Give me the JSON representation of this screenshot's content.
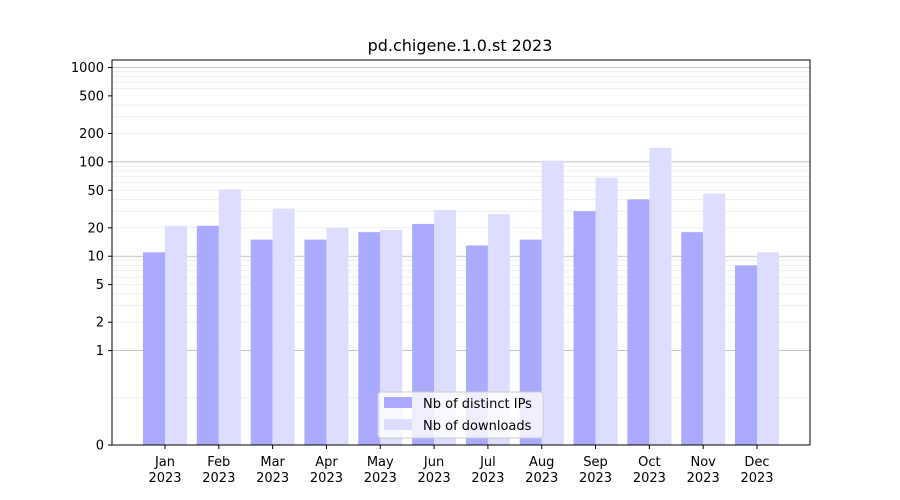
{
  "chart_data": {
    "type": "bar",
    "title": "pd.chigene.1.0.st 2023",
    "xlabel": "",
    "ylabel": "",
    "y_scale": "symlog",
    "y_ticks": [
      0,
      1,
      2,
      5,
      10,
      20,
      50,
      100,
      200,
      500,
      1000
    ],
    "y_tick_labels": [
      "0",
      "1",
      "2",
      "5",
      "10",
      "20",
      "50",
      "100",
      "200",
      "500",
      "1000"
    ],
    "ylim": [
      0,
      1200
    ],
    "grid": true,
    "legend_position": "bottom-center",
    "categories": [
      {
        "month": "Jan",
        "year": "2023"
      },
      {
        "month": "Feb",
        "year": "2023"
      },
      {
        "month": "Mar",
        "year": "2023"
      },
      {
        "month": "Apr",
        "year": "2023"
      },
      {
        "month": "May",
        "year": "2023"
      },
      {
        "month": "Jun",
        "year": "2023"
      },
      {
        "month": "Jul",
        "year": "2023"
      },
      {
        "month": "Aug",
        "year": "2023"
      },
      {
        "month": "Sep",
        "year": "2023"
      },
      {
        "month": "Oct",
        "year": "2023"
      },
      {
        "month": "Nov",
        "year": "2023"
      },
      {
        "month": "Dec",
        "year": "2023"
      }
    ],
    "series": [
      {
        "name": "Nb of distinct IPs",
        "color": "#aaaaff",
        "values": [
          11,
          21,
          15,
          15,
          18,
          22,
          13,
          15,
          30,
          40,
          18,
          8
        ]
      },
      {
        "name": "Nb of downloads",
        "color": "#ddddff",
        "values": [
          21,
          51,
          32,
          20,
          19,
          31,
          28,
          103,
          68,
          141,
          46,
          11
        ]
      }
    ]
  }
}
